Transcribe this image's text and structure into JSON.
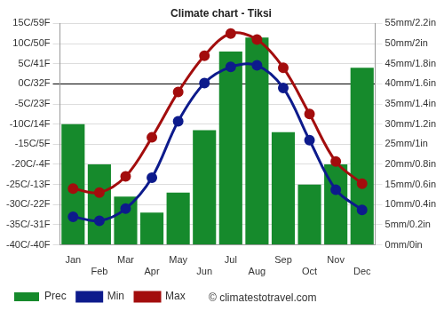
{
  "chart_data": {
    "type": "bar",
    "title": "Climate chart - Tiksi",
    "categories": [
      "Jan",
      "Feb",
      "Mar",
      "Apr",
      "May",
      "Jun",
      "Jul",
      "Aug",
      "Sep",
      "Oct",
      "Nov",
      "Dec"
    ],
    "series": [
      {
        "name": "Prec",
        "type": "bar",
        "axis": "y2",
        "color": "#168a2c",
        "values": [
          30,
          20,
          12,
          8,
          13,
          28.5,
          48,
          51.5,
          28,
          15,
          20,
          44
        ]
      },
      {
        "name": "Min",
        "type": "line",
        "color": "#0d1b8c",
        "marker": "circle",
        "line_style": "solid",
        "values": [
          -33,
          -34,
          -31,
          -23.3,
          -9.3,
          0.2,
          4.2,
          4.6,
          -1,
          -14,
          -26.3,
          -31.3
        ]
      },
      {
        "name": "Max",
        "type": "line",
        "color": "#a30d0d",
        "marker": "circle",
        "line_style": "solid",
        "values": [
          -26,
          -27,
          -23,
          -13.3,
          -2,
          7,
          12.5,
          11,
          4,
          -7.5,
          -19.3,
          -24.8
        ]
      }
    ],
    "ylim": [
      -40,
      15
    ],
    "yticks": [
      {
        "value": -40,
        "label": "-40C/-40F"
      },
      {
        "value": -35,
        "label": "-35C/-31F"
      },
      {
        "value": -30,
        "label": "-30C/-22F"
      },
      {
        "value": -25,
        "label": "-25C/-13F"
      },
      {
        "value": -20,
        "label": "-20C/-4F"
      },
      {
        "value": -15,
        "label": "-15C/5F"
      },
      {
        "value": -10,
        "label": "-10C/14F"
      },
      {
        "value": -5,
        "label": "-5C/23F"
      },
      {
        "value": 0,
        "label": "0C/32F"
      },
      {
        "value": 5,
        "label": "5C/41F"
      },
      {
        "value": 10,
        "label": "10C/50F"
      },
      {
        "value": 15,
        "label": "15C/59F"
      }
    ],
    "y2lim": [
      0,
      55
    ],
    "y2ticks": [
      {
        "value": 0,
        "label": "0mm/0in"
      },
      {
        "value": 5,
        "label": "5mm/0.2in"
      },
      {
        "value": 10,
        "label": "10mm/0.4in"
      },
      {
        "value": 15,
        "label": "15mm/0.6in"
      },
      {
        "value": 20,
        "label": "20mm/0.8in"
      },
      {
        "value": 25,
        "label": "25mm/1in"
      },
      {
        "value": 30,
        "label": "30mm/1.2in"
      },
      {
        "value": 35,
        "label": "35mm/1.4in"
      },
      {
        "value": 40,
        "label": "40mm/1.6in"
      },
      {
        "value": 45,
        "label": "45mm/1.8in"
      },
      {
        "value": 50,
        "label": "50mm/2in"
      },
      {
        "value": 55,
        "label": "55mm/2.2in"
      }
    ],
    "grid": true,
    "legend": "bottom",
    "annotations": [
      "© climatestotravel.com"
    ]
  }
}
